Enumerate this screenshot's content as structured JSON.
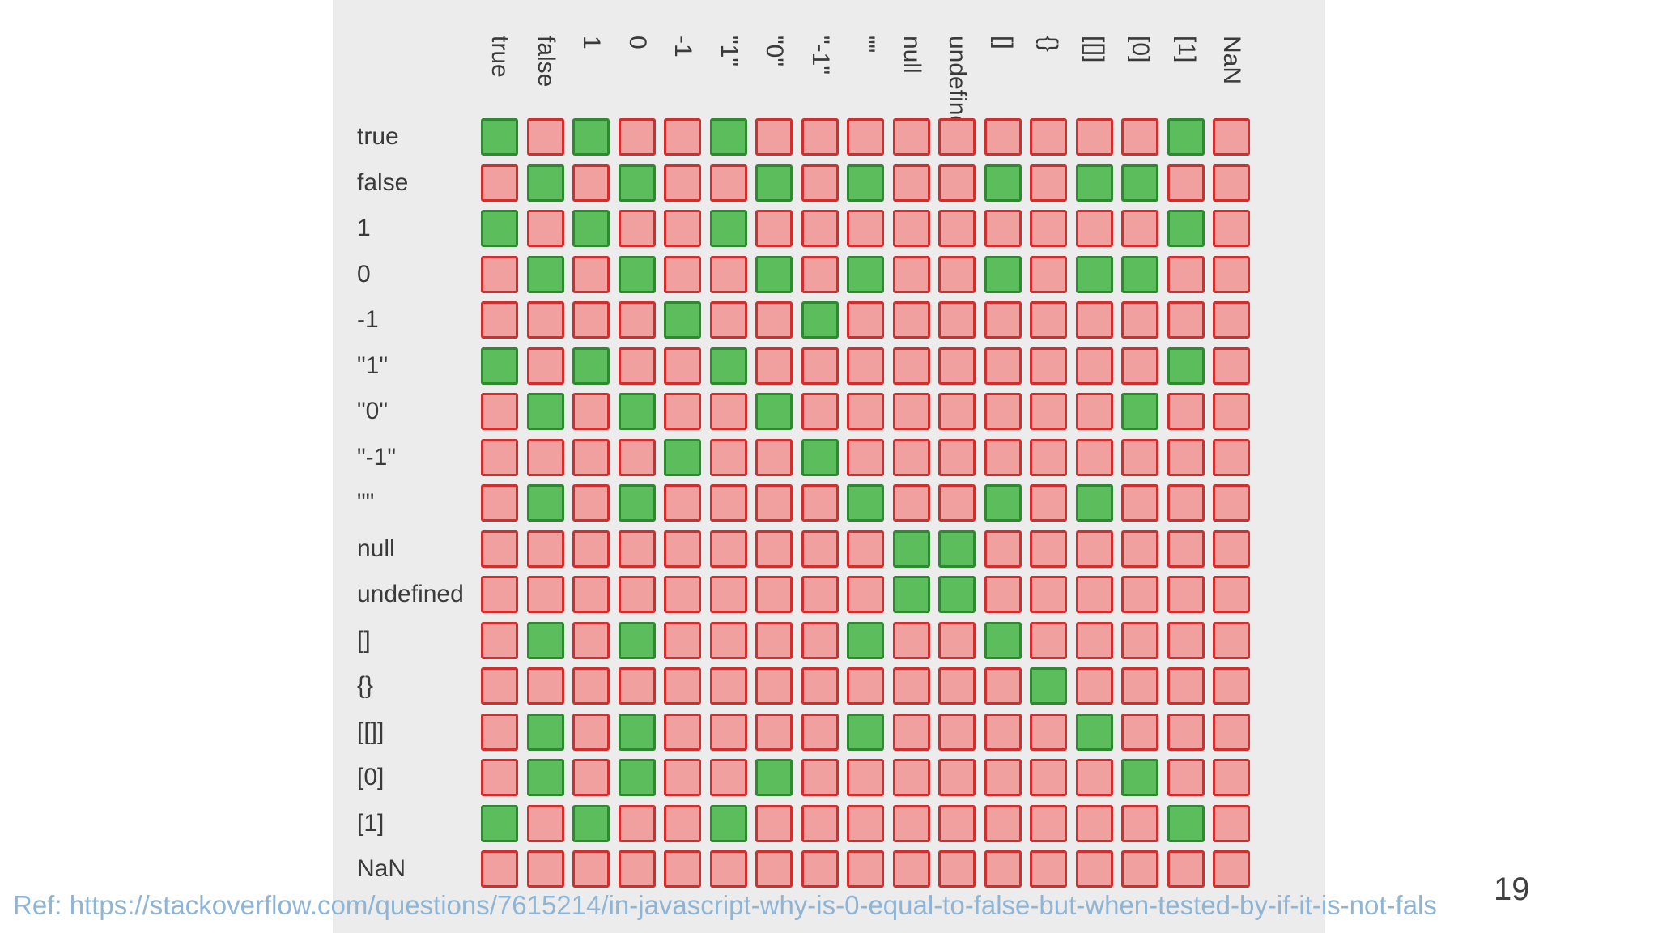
{
  "table": {
    "columns": [
      "true",
      "false",
      "1",
      "0",
      "-1",
      "\"1\"",
      "\"0\"",
      "\"-1\"",
      "\"\"",
      "null",
      "undefined",
      "[]",
      "{}",
      "[[]]",
      "[0]",
      "[1]",
      "NaN"
    ],
    "rows": [
      "true",
      "false",
      "1",
      "0",
      "-1",
      "\"1\"",
      "\"0\"",
      "\"-1\"",
      "\"\"",
      "null",
      "undefined",
      "[]",
      "{}",
      "[[]]",
      "[0]",
      "[1]",
      "NaN"
    ],
    "matrix": [
      [
        1,
        0,
        1,
        0,
        0,
        1,
        0,
        0,
        0,
        0,
        0,
        0,
        0,
        0,
        0,
        1,
        0
      ],
      [
        0,
        1,
        0,
        1,
        0,
        0,
        1,
        0,
        1,
        0,
        0,
        1,
        0,
        1,
        1,
        0,
        0
      ],
      [
        1,
        0,
        1,
        0,
        0,
        1,
        0,
        0,
        0,
        0,
        0,
        0,
        0,
        0,
        0,
        1,
        0
      ],
      [
        0,
        1,
        0,
        1,
        0,
        0,
        1,
        0,
        1,
        0,
        0,
        1,
        0,
        1,
        1,
        0,
        0
      ],
      [
        0,
        0,
        0,
        0,
        1,
        0,
        0,
        1,
        0,
        0,
        0,
        0,
        0,
        0,
        0,
        0,
        0
      ],
      [
        1,
        0,
        1,
        0,
        0,
        1,
        0,
        0,
        0,
        0,
        0,
        0,
        0,
        0,
        0,
        1,
        0
      ],
      [
        0,
        1,
        0,
        1,
        0,
        0,
        1,
        0,
        0,
        0,
        0,
        0,
        0,
        0,
        1,
        0,
        0
      ],
      [
        0,
        0,
        0,
        0,
        1,
        0,
        0,
        1,
        0,
        0,
        0,
        0,
        0,
        0,
        0,
        0,
        0
      ],
      [
        0,
        1,
        0,
        1,
        0,
        0,
        0,
        0,
        1,
        0,
        0,
        1,
        0,
        1,
        0,
        0,
        0
      ],
      [
        0,
        0,
        0,
        0,
        0,
        0,
        0,
        0,
        0,
        1,
        1,
        0,
        0,
        0,
        0,
        0,
        0
      ],
      [
        0,
        0,
        0,
        0,
        0,
        0,
        0,
        0,
        0,
        1,
        1,
        0,
        0,
        0,
        0,
        0,
        0
      ],
      [
        0,
        1,
        0,
        1,
        0,
        0,
        0,
        0,
        1,
        0,
        0,
        1,
        0,
        0,
        0,
        0,
        0
      ],
      [
        0,
        0,
        0,
        0,
        0,
        0,
        0,
        0,
        0,
        0,
        0,
        0,
        1,
        0,
        0,
        0,
        0
      ],
      [
        0,
        1,
        0,
        1,
        0,
        0,
        0,
        0,
        1,
        0,
        0,
        0,
        0,
        1,
        0,
        0,
        0
      ],
      [
        0,
        1,
        0,
        1,
        0,
        0,
        1,
        0,
        0,
        0,
        0,
        0,
        0,
        0,
        1,
        0,
        0
      ],
      [
        1,
        0,
        1,
        0,
        0,
        1,
        0,
        0,
        0,
        0,
        0,
        0,
        0,
        0,
        0,
        1,
        0
      ],
      [
        0,
        0,
        0,
        0,
        0,
        0,
        0,
        0,
        0,
        0,
        0,
        0,
        0,
        0,
        0,
        0,
        0
      ]
    ]
  },
  "colors": {
    "equal_fill": "#5cbd5c",
    "equal_border": "#2e8a2e",
    "not_equal_fill": "#f0a19f",
    "not_equal_border": "#d22e2e",
    "panel_background": "#ececec",
    "reference_text": "#8fb5d6"
  },
  "slide": {
    "page_number": "19",
    "reference": "Ref: https://stackoverflow.com/questions/7615214/in-javascript-why-is-0-equal-to-false-but-when-tested-by-if-it-is-not-fals"
  }
}
